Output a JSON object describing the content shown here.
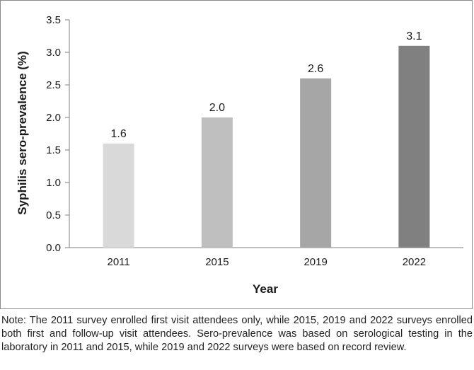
{
  "chart_data": {
    "type": "bar",
    "categories": [
      "2011",
      "2015",
      "2019",
      "2022"
    ],
    "values": [
      1.6,
      2.0,
      2.6,
      3.1
    ],
    "data_labels": [
      "1.6",
      "2.0",
      "2.6",
      "3.1"
    ],
    "bar_colors": [
      "#d9d9d9",
      "#bfbfbf",
      "#a6a6a6",
      "#808080"
    ],
    "xlabel": "Year",
    "ylabel": "Syphilis sero-prevalence (%)",
    "ylim": [
      0,
      3.5
    ],
    "yticks": [
      "0.0",
      "0.5",
      "1.0",
      "1.5",
      "2.0",
      "2.5",
      "3.0",
      "3.5"
    ],
    "ytick_values": [
      0,
      0.5,
      1.0,
      1.5,
      2.0,
      2.5,
      3.0,
      3.5
    ],
    "grid": false,
    "legend": "none"
  },
  "note": "Note: The 2011 survey enrolled first visit attendees only, while 2015, 2019 and 2022 surveys enrolled both first and follow-up visit attendees. Sero-prevalence was based on serological testing in the laboratory in 2011 and 2015, while 2019 and 2022 surveys were based on record review."
}
